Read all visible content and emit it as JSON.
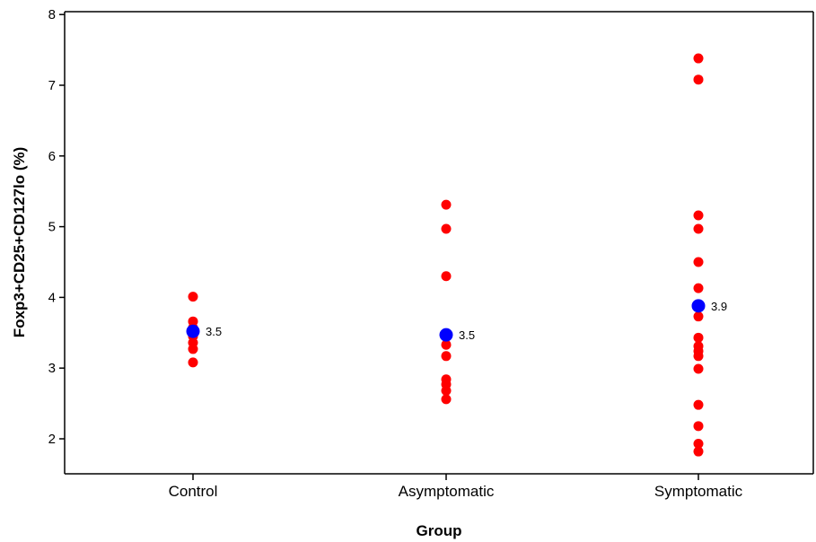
{
  "chart_data": {
    "type": "scatter",
    "title": "",
    "xlabel": "Group",
    "ylabel": "Foxp3+CD25+CD127lo (%)",
    "ylim": [
      1.5,
      8.1
    ],
    "yticks": [
      2,
      3,
      4,
      5,
      6,
      7,
      8
    ],
    "categories": [
      "Control",
      "Asymptomatic",
      "Symptomatic"
    ],
    "grid": false,
    "point_color": "#ff0000",
    "mean_color": "#0000ff",
    "series": [
      {
        "category": "Control",
        "values": [
          4.01,
          3.66,
          3.57,
          3.45,
          3.36,
          3.27,
          3.08
        ],
        "mean": 3.52,
        "mean_label": "3.5"
      },
      {
        "category": "Asymptomatic",
        "values": [
          5.31,
          4.97,
          4.3,
          3.33,
          3.17,
          2.84,
          2.77,
          2.68,
          2.56
        ],
        "mean": 3.47,
        "mean_label": "3.5"
      },
      {
        "category": "Symptomatic",
        "values": [
          7.38,
          7.08,
          5.16,
          4.97,
          4.5,
          4.13,
          3.73,
          3.43,
          3.31,
          3.24,
          3.17,
          2.99,
          2.48,
          2.18,
          1.93,
          1.82
        ],
        "mean": 3.88,
        "mean_label": "3.9"
      }
    ]
  }
}
